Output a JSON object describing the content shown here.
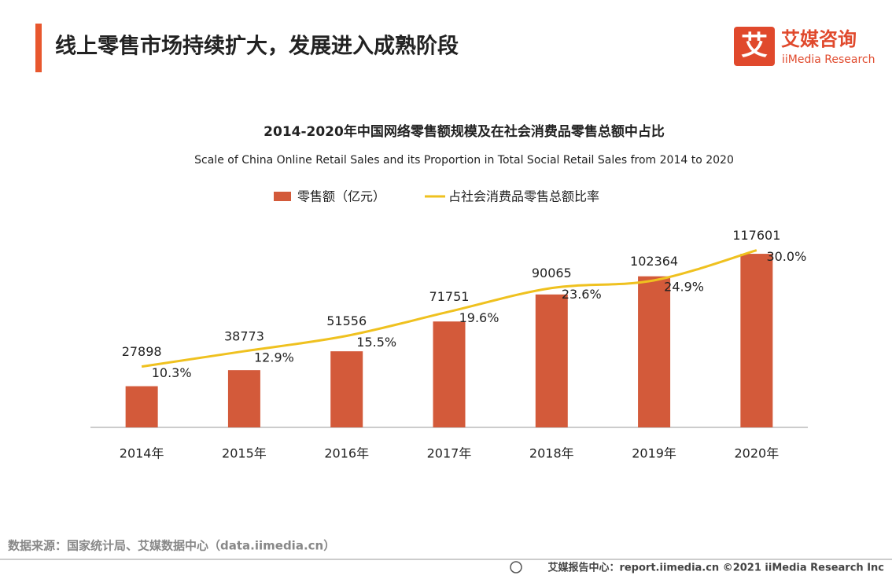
{
  "header": {
    "title": "线上零售市场持续扩大，发展进入成熟阶段",
    "logo_icon": "艾",
    "logo_name": "艾媒咨询",
    "logo_sub": "iiMedia Research"
  },
  "chart_data": {
    "type": "bar",
    "title": "2014-2020年中国网络零售额规模及在社会消费品零售总额中占比",
    "subtitle": "Scale of China Online Retail Sales and its Proportion in Total Social Retail Sales from 2014 to 2020",
    "categories": [
      "2014年",
      "2015年",
      "2016年",
      "2017年",
      "2018年",
      "2019年",
      "2020年"
    ],
    "series": [
      {
        "name": "零售额（亿元）",
        "type": "bar",
        "color": "#d35a3a",
        "values": [
          27898,
          38773,
          51556,
          71751,
          90065,
          102364,
          117601
        ]
      },
      {
        "name": "占社会消费品零售总额比率",
        "type": "line",
        "axis": "y2",
        "color": "#efc11f",
        "values": [
          10.3,
          12.9,
          15.5,
          19.6,
          23.6,
          24.9,
          30.0
        ],
        "value_labels": [
          "10.3%",
          "12.9%",
          "15.5%",
          "19.6%",
          "23.6%",
          "24.9%",
          "30.0%"
        ]
      }
    ],
    "ylim": [
      0,
      140000
    ],
    "y2lim": [
      0,
      35
    ],
    "legend": "top"
  },
  "footer": {
    "source": "数据来源：国家统计局、艾媒数据中心（data.iimedia.cn）",
    "credit": "艾媒报告中心：report.iimedia.cn  ©2021  iiMedia Research  Inc"
  }
}
